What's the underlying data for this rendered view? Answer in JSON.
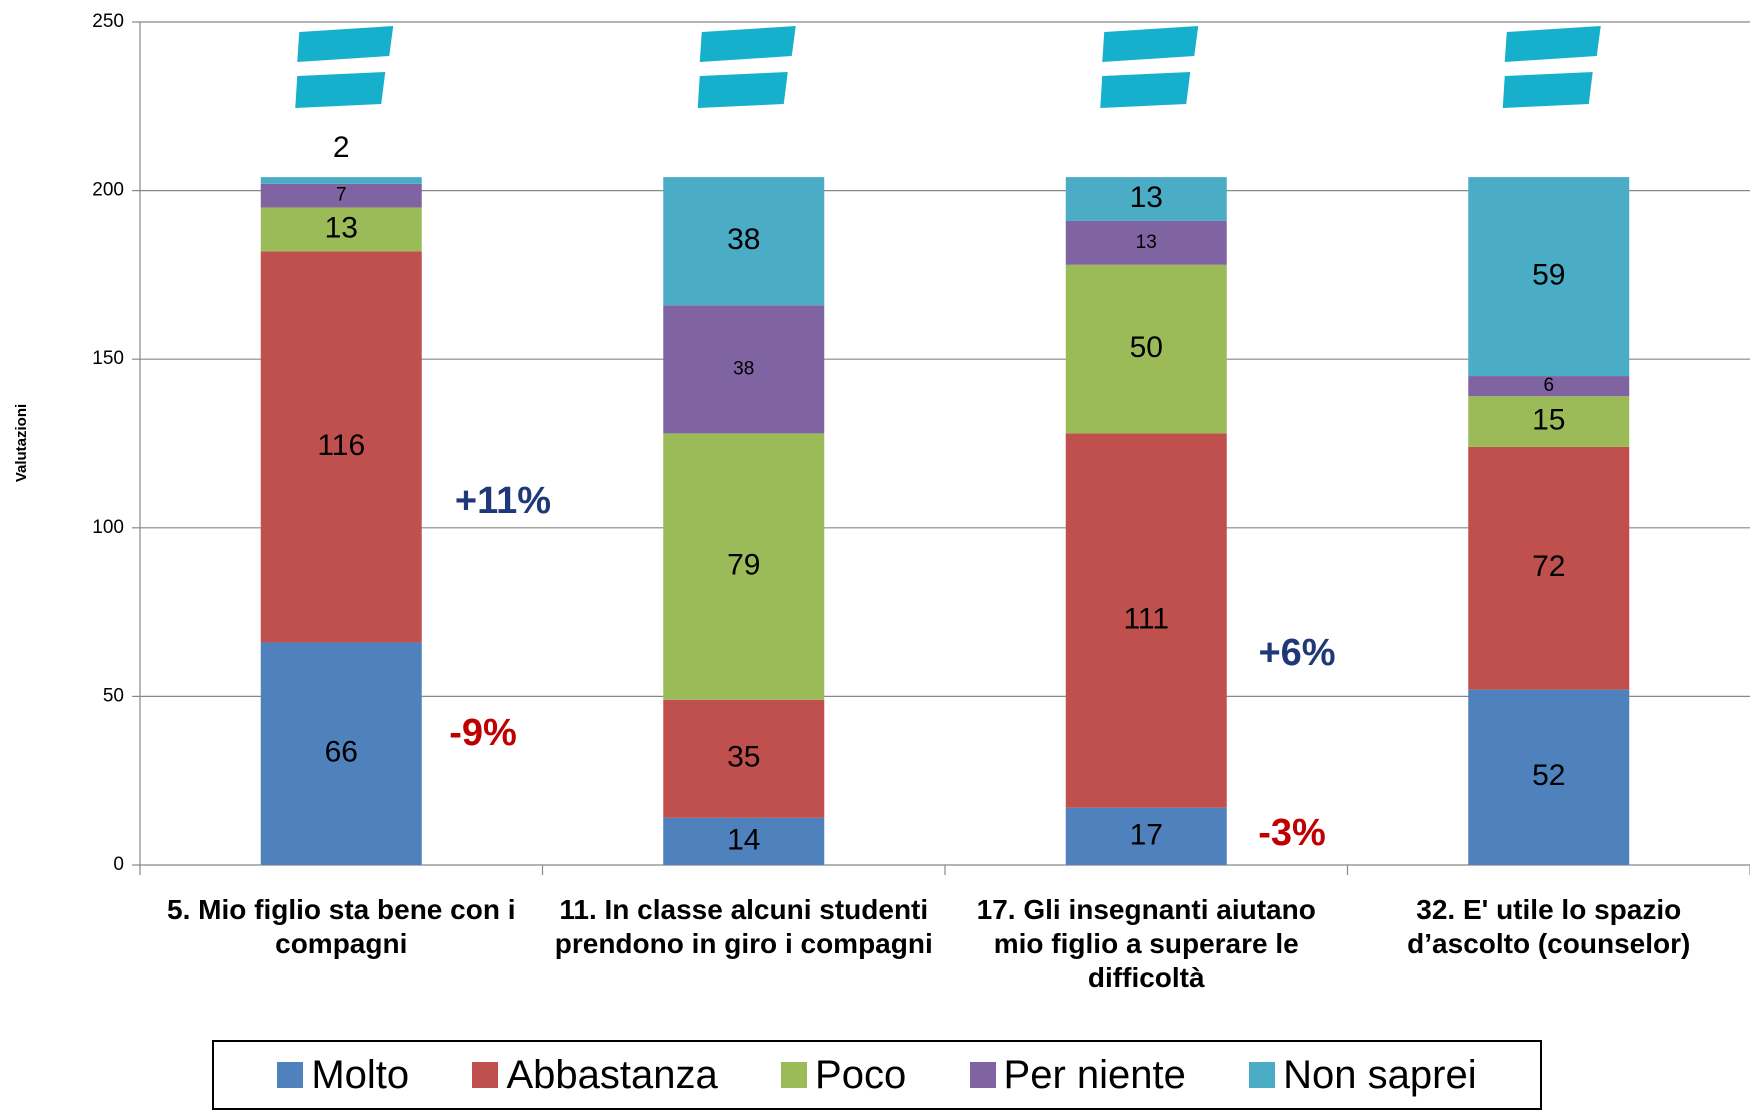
{
  "chart_data": {
    "type": "stacked_bar",
    "y_label": "Valutazioni",
    "categories": [
      "5. Mio figlio sta bene con i compagni",
      "11. In classe alcuni studenti prendono in giro i compagni",
      "17. Gli insegnanti aiutano mio figlio  a superare le difficoltà",
      "32. E' utile lo spazio d’ascolto (counselor)"
    ],
    "series": [
      {
        "name": "Molto",
        "color": "#4f81bd",
        "values": [
          66,
          14,
          17,
          52
        ]
      },
      {
        "name": "Abbastanza",
        "color": "#c0504d",
        "values": [
          116,
          35,
          111,
          72
        ]
      },
      {
        "name": "Poco",
        "color": "#9bbb59",
        "values": [
          13,
          79,
          50,
          15
        ]
      },
      {
        "name": "Per niente",
        "color": "#8064a2",
        "values": [
          7,
          38,
          13,
          6
        ]
      },
      {
        "name": "Non saprei",
        "color": "#4bacc6",
        "values": [
          2,
          38,
          13,
          59
        ]
      }
    ],
    "ylim": [
      0,
      250
    ],
    "yticks": [
      0,
      50,
      100,
      150,
      200,
      250
    ],
    "grid": true,
    "legend": "bottom",
    "annotations": [
      {
        "text": "+11%",
        "color": "#1f3878"
      },
      {
        "text": "-9%",
        "color": "#c00000"
      },
      {
        "text": "+6%",
        "color": "#1f3878"
      },
      {
        "text": "-3%",
        "color": "#c00000"
      }
    ]
  }
}
